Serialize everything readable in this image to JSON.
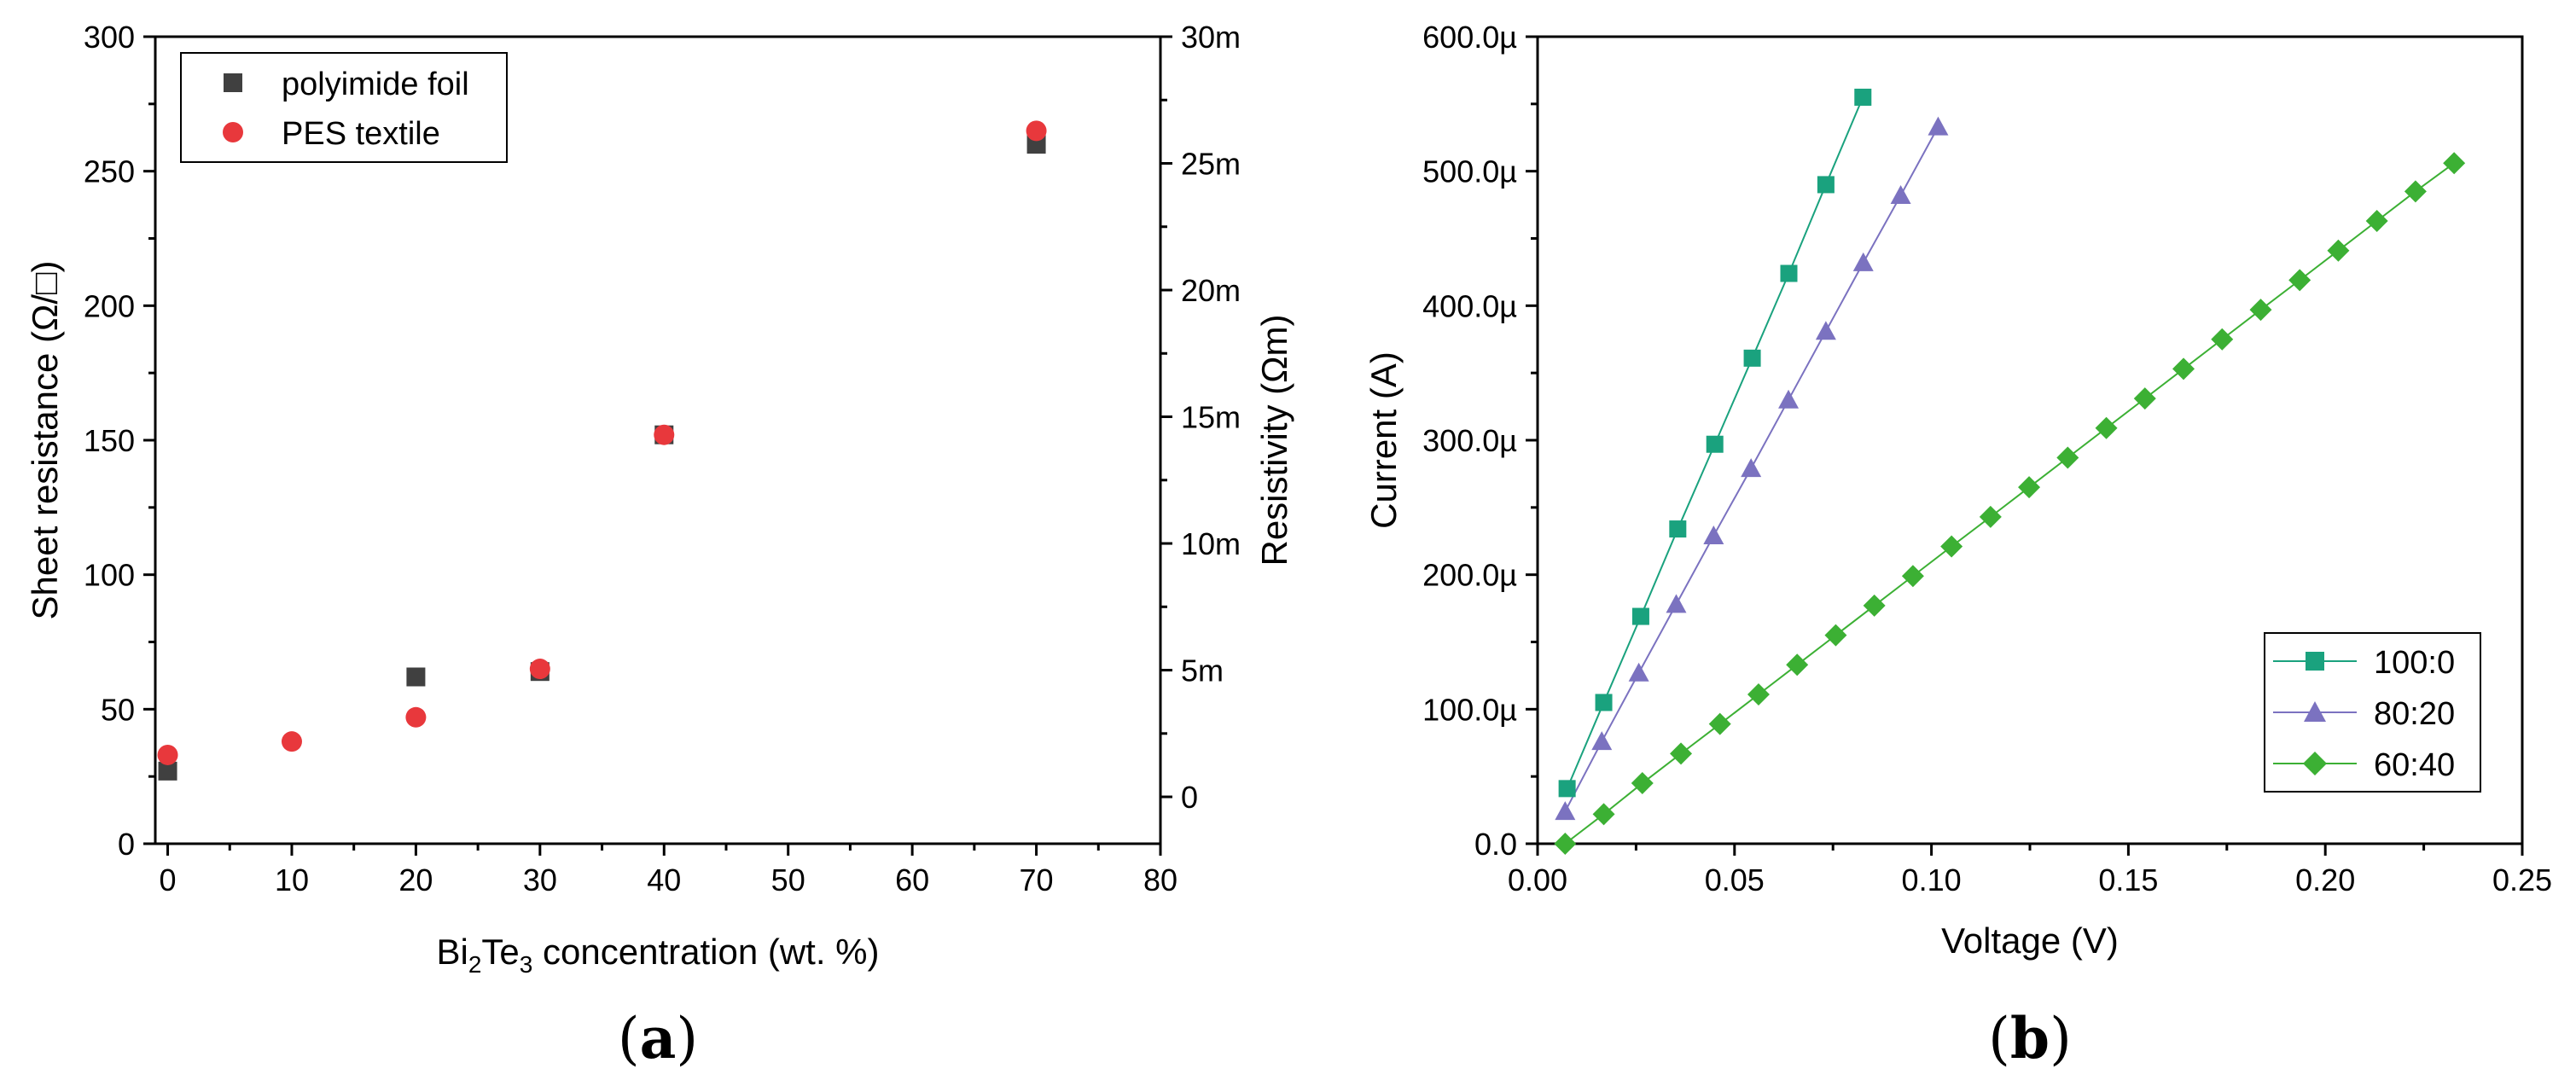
{
  "chart_data": [
    {
      "type": "scatter",
      "panel_label": {
        "open": "(",
        "letter": "a",
        "close": ")"
      },
      "xlabel": {
        "prefix": "Bi",
        "sub1": "2",
        "mid": "Te",
        "sub2": "3",
        "suffix": " concentration (wt. %)"
      },
      "ylabel": "Sheet resistance (Ω/□)",
      "y2label": "Resistivity (Ωm)",
      "xlim": [
        -1,
        80
      ],
      "ylim": [
        0,
        300
      ],
      "y2lim": [
        -1.85,
        30
      ],
      "xticks": [
        0,
        10,
        20,
        30,
        40,
        50,
        60,
        70,
        80
      ],
      "xtick_labels": [
        "0",
        "10",
        "20",
        "30",
        "40",
        "50",
        "60",
        "70",
        "80"
      ],
      "yticks": [
        0,
        50,
        100,
        150,
        200,
        250,
        300
      ],
      "ytick_labels": [
        "0",
        "50",
        "100",
        "150",
        "200",
        "250",
        "300"
      ],
      "y2ticks": [
        0,
        5,
        10,
        15,
        20,
        25,
        30
      ],
      "y2tick_labels": [
        "0",
        "5m",
        "10m",
        "15m",
        "20m",
        "25m",
        "30m"
      ],
      "legend_position": "top-left",
      "series": [
        {
          "name": "polyimide foil",
          "marker": "square",
          "color": "#404040",
          "x": [
            0,
            20,
            30,
            40,
            70
          ],
          "y": [
            27,
            62,
            64,
            152,
            260
          ]
        },
        {
          "name": "PES textile",
          "marker": "circle",
          "color": "#e8383c",
          "x": [
            0,
            10,
            20,
            30,
            40,
            70
          ],
          "y": [
            33,
            38,
            47,
            65,
            152,
            265
          ]
        }
      ]
    },
    {
      "type": "line",
      "panel_label": {
        "open": "(",
        "letter": "b",
        "close": ")"
      },
      "xlabel": "Voltage (V)",
      "ylabel": "Current (A)",
      "xlim": [
        0,
        0.25
      ],
      "ylim": [
        0,
        600
      ],
      "xticks": [
        0,
        0.05,
        0.1,
        0.15,
        0.2,
        0.25
      ],
      "xtick_labels": [
        "0.00",
        "0.05",
        "0.10",
        "0.15",
        "0.20",
        "0.25"
      ],
      "yticks": [
        0,
        100,
        200,
        300,
        400,
        500,
        600
      ],
      "ytick_labels": [
        "0.0",
        "100.0µ",
        "200.0µ",
        "300.0µ",
        "400.0µ",
        "500.0µ",
        "600.0µ"
      ],
      "y_unit_note": "µA",
      "legend_position": "bottom-right",
      "series": [
        {
          "name": "100:0",
          "marker": "square",
          "color": "#1aa27e",
          "x": [
            0.0075,
            0.0168,
            0.0262,
            0.0356,
            0.045,
            0.0545,
            0.0638,
            0.0732,
            0.0826
          ],
          "y": [
            41,
            105,
            169,
            234,
            297,
            361,
            424,
            490,
            555
          ]
        },
        {
          "name": "80:20",
          "marker": "triangle",
          "color": "#7b72c0",
          "x": [
            0.007,
            0.0163,
            0.0257,
            0.0352,
            0.0447,
            0.0542,
            0.0637,
            0.0732,
            0.0827,
            0.0922,
            0.1017
          ],
          "y": [
            24,
            76,
            127,
            178,
            229,
            279,
            330,
            381,
            432,
            482,
            533
          ]
        },
        {
          "name": "60:40",
          "marker": "diamond",
          "color": "#3cb034",
          "x": [
            0.007,
            0.0168,
            0.0266,
            0.0364,
            0.0463,
            0.0561,
            0.0659,
            0.0757,
            0.0855,
            0.0953,
            0.1051,
            0.115,
            0.1248,
            0.1346,
            0.1444,
            0.1542,
            0.164,
            0.1738,
            0.1836,
            0.1935,
            0.2033,
            0.2131,
            0.2229,
            0.2327
          ],
          "y": [
            0,
            22,
            45,
            67,
            89,
            111,
            133,
            155,
            177,
            199,
            221,
            243,
            265,
            287,
            309,
            331,
            353,
            375,
            397,
            419,
            441,
            463,
            485,
            506
          ]
        }
      ]
    }
  ]
}
